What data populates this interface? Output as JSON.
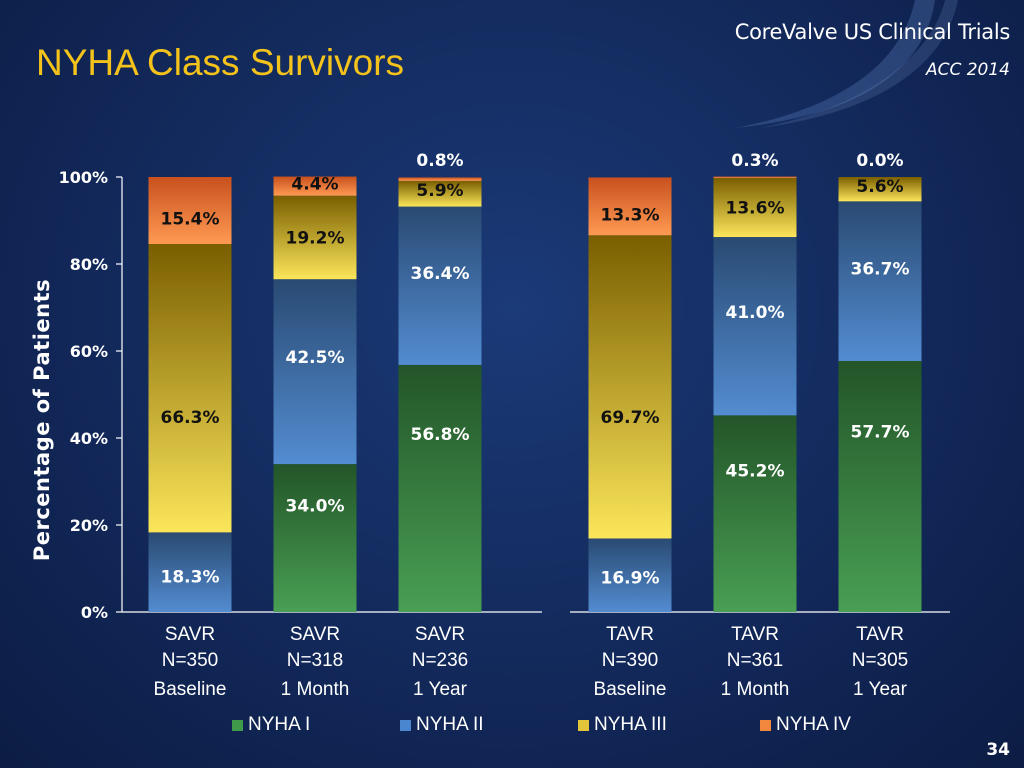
{
  "slide": {
    "title": "NYHA Class Survivors",
    "brand": "CoreValve US Clinical Trials",
    "conference": "ACC 2014",
    "page_number": "34"
  },
  "colors": {
    "nyha1": "#3f9a4a",
    "nyha2": "#4a86cf",
    "nyha3": "#e3c53a",
    "nyha4": "#f0883e",
    "accent_title": "#f3c21b"
  },
  "chart_data": {
    "type": "bar",
    "stacked": true,
    "ylabel": "Percentage of Patients",
    "ylim": [
      0,
      100
    ],
    "yticks": [
      "0%",
      "20%",
      "40%",
      "60%",
      "80%",
      "100%"
    ],
    "legend_position": "bottom",
    "groups": [
      "SAVR",
      "TAVR"
    ],
    "categories": [
      {
        "name": "SAVR",
        "n": "N=350",
        "time": "Baseline"
      },
      {
        "name": "SAVR",
        "n": "N=318",
        "time": "1 Month"
      },
      {
        "name": "SAVR",
        "n": "N=236",
        "time": "1 Year"
      },
      {
        "name": "TAVR",
        "n": "N=390",
        "time": "Baseline"
      },
      {
        "name": "TAVR",
        "n": "N=361",
        "time": "1 Month"
      },
      {
        "name": "TAVR",
        "n": "N=305",
        "time": "1 Year"
      }
    ],
    "series": [
      {
        "name": "NYHA I",
        "color": "#3f9a4a",
        "values": [
          0,
          34.0,
          56.8,
          0,
          45.2,
          57.7
        ],
        "labels": [
          "",
          "34.0%",
          "56.8%",
          "",
          "45.2%",
          "57.7%"
        ]
      },
      {
        "name": "NYHA II",
        "color": "#4a86cf",
        "values": [
          18.3,
          42.5,
          36.4,
          16.9,
          41.0,
          36.7
        ],
        "labels": [
          "18.3%",
          "42.5%",
          "36.4%",
          "16.9%",
          "41.0%",
          "36.7%"
        ]
      },
      {
        "name": "NYHA III",
        "color": "#e3c53a",
        "values": [
          66.3,
          19.2,
          5.9,
          69.7,
          13.6,
          5.6
        ],
        "labels": [
          "66.3%",
          "19.2%",
          "5.9%",
          "69.7%",
          "13.6%",
          "5.6%"
        ]
      },
      {
        "name": "NYHA IV",
        "color": "#f0883e",
        "values": [
          15.4,
          4.4,
          0.8,
          13.3,
          0.3,
          0.0
        ],
        "labels": [
          "15.4%",
          "4.4%",
          "0.8%",
          "13.3%",
          "0.3%",
          "0.0%"
        ]
      }
    ]
  }
}
